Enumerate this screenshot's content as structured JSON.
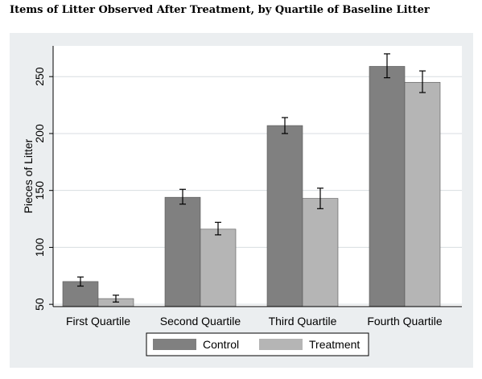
{
  "title": "Items of Litter Observed After Treatment, by Quartile of Baseline Litter",
  "chart_data": {
    "type": "bar",
    "title": "Items of Litter Observed After Treatment, by Quartile of Baseline Litter",
    "xlabel": "",
    "ylabel": "Pieces of Litter",
    "ylim": [
      48,
      277
    ],
    "yticks": [
      50,
      100,
      150,
      200,
      250
    ],
    "grid": true,
    "legend_position": "bottom",
    "categories": [
      "First Quartile",
      "Second Quartile",
      "Third Quartile",
      "Fourth Quartile"
    ],
    "series": [
      {
        "name": "Control",
        "color": "#808080",
        "values": [
          70,
          144,
          207,
          259
        ],
        "ci_low": [
          66,
          138,
          200,
          249
        ],
        "ci_high": [
          74,
          151,
          214,
          270
        ]
      },
      {
        "name": "Treatment",
        "color": "#b5b5b5",
        "values": [
          55,
          116,
          143,
          245
        ],
        "ci_low": [
          52,
          111,
          134,
          236
        ],
        "ci_high": [
          58,
          122,
          152,
          255
        ]
      }
    ]
  }
}
